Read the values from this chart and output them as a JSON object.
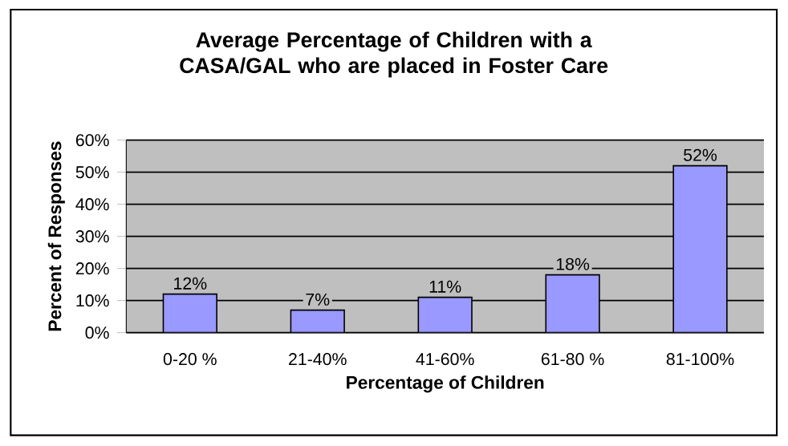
{
  "chart_data": {
    "type": "bar",
    "title": "Average Percentage of Children with a CASA/GAL who are placed in Foster Care",
    "xlabel": "Percentage of Children",
    "ylabel": "Percent of Responses",
    "categories": [
      "0-20 %",
      "21-40%",
      "41-60%",
      "61-80 %",
      "81-100%"
    ],
    "values": [
      12,
      7,
      11,
      18,
      52
    ],
    "value_labels": [
      "12%",
      "7%",
      "11%",
      "18%",
      "52%"
    ],
    "color": "#9999ff",
    "ylim": [
      0,
      60
    ],
    "yticks": [
      {
        "value": 0,
        "label": "0%"
      },
      {
        "value": 10,
        "label": "10%"
      },
      {
        "value": 20,
        "label": "20%"
      },
      {
        "value": 30,
        "label": "30%"
      },
      {
        "value": 40,
        "label": "40%"
      },
      {
        "value": 50,
        "label": "50%"
      },
      {
        "value": 60,
        "label": "60%"
      }
    ],
    "grid": "y"
  }
}
